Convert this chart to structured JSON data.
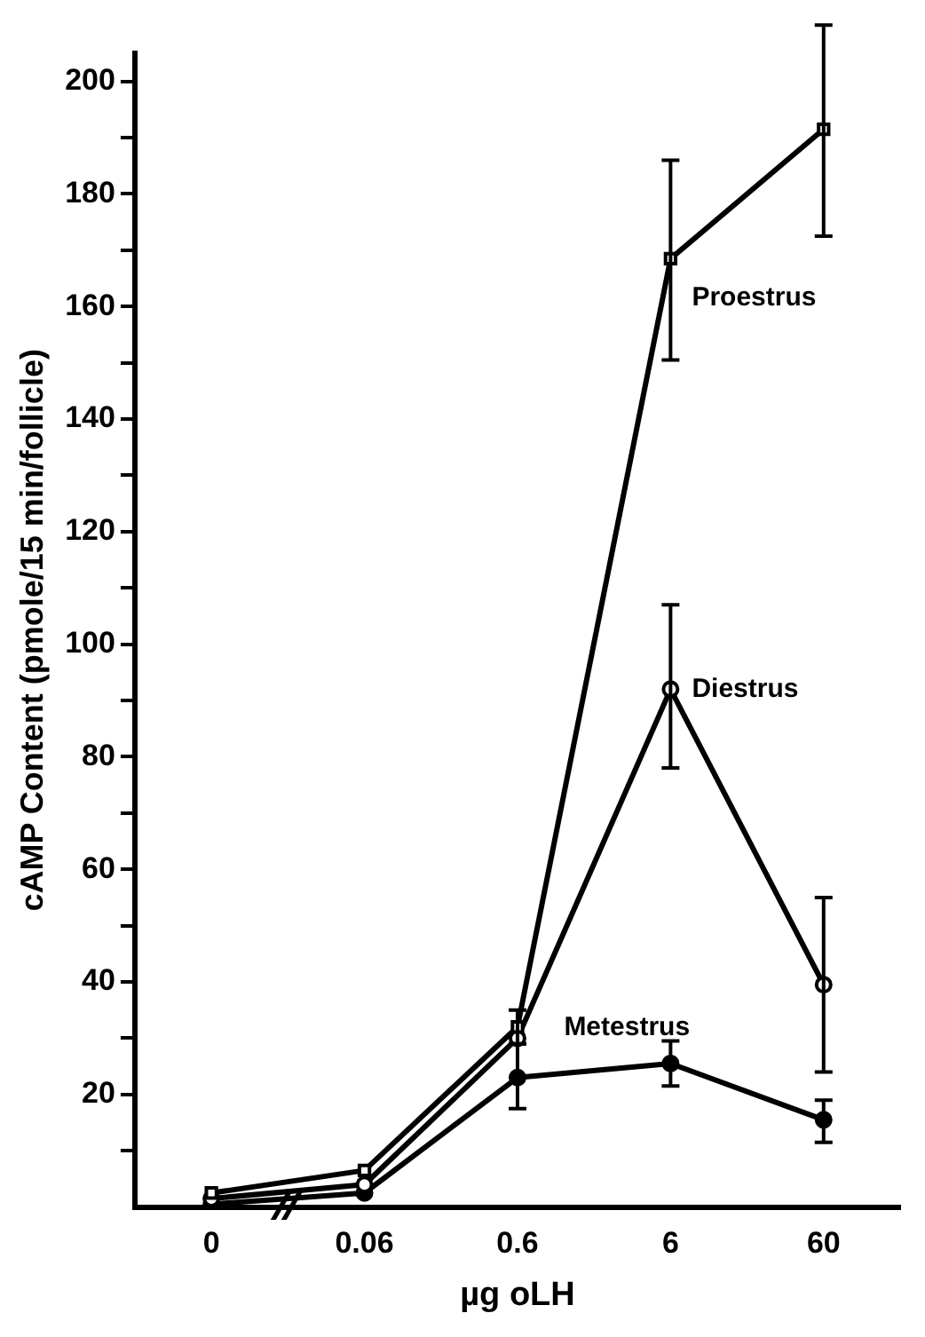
{
  "chart_data": {
    "type": "line",
    "xlabel": "µg oLH",
    "ylabel": "cAMP Content (pmole/15 min/follicle)",
    "categories": [
      "0",
      "0.06",
      "0.6",
      "6",
      "60"
    ],
    "series": [
      {
        "name": "Proestrus",
        "color": "#000000",
        "marker": "square",
        "values": [
          2.5,
          6.5,
          32,
          168.5,
          191.5
        ],
        "errors": [
          null,
          null,
          [
            29,
            35
          ],
          [
            150.5,
            186
          ],
          [
            172.5,
            210
          ]
        ]
      },
      {
        "name": "Diestrus",
        "color": "#000000",
        "marker": "circle",
        "values": [
          1.5,
          4,
          30,
          92,
          39.5
        ],
        "errors": [
          null,
          null,
          null,
          [
            78,
            107
          ],
          [
            24,
            55
          ]
        ]
      },
      {
        "name": "Metestrus",
        "color": "#000000",
        "marker": "circle",
        "values": [
          0.5,
          2.5,
          23,
          25.5,
          15.5
        ],
        "errors": [
          null,
          null,
          [
            17.5,
            29
          ],
          [
            21.5,
            29.5
          ],
          [
            11.5,
            19
          ]
        ]
      }
    ],
    "ylim": [
      0,
      205
    ],
    "yticks": [
      {
        "value": 10,
        "label": null
      },
      20,
      {
        "value": 30,
        "label": null
      },
      40,
      {
        "value": 50,
        "label": null
      },
      60,
      {
        "value": 70,
        "label": null
      },
      80,
      {
        "value": 90,
        "label": null
      },
      100,
      {
        "value": 110,
        "label": null
      },
      120,
      {
        "value": 130,
        "label": null
      },
      140,
      {
        "value": 150,
        "label": null
      },
      160,
      {
        "value": 170,
        "label": null
      },
      180,
      {
        "value": 190,
        "label": null
      },
      200
    ],
    "grid": false,
    "legend": false,
    "line_style": "solid"
  }
}
